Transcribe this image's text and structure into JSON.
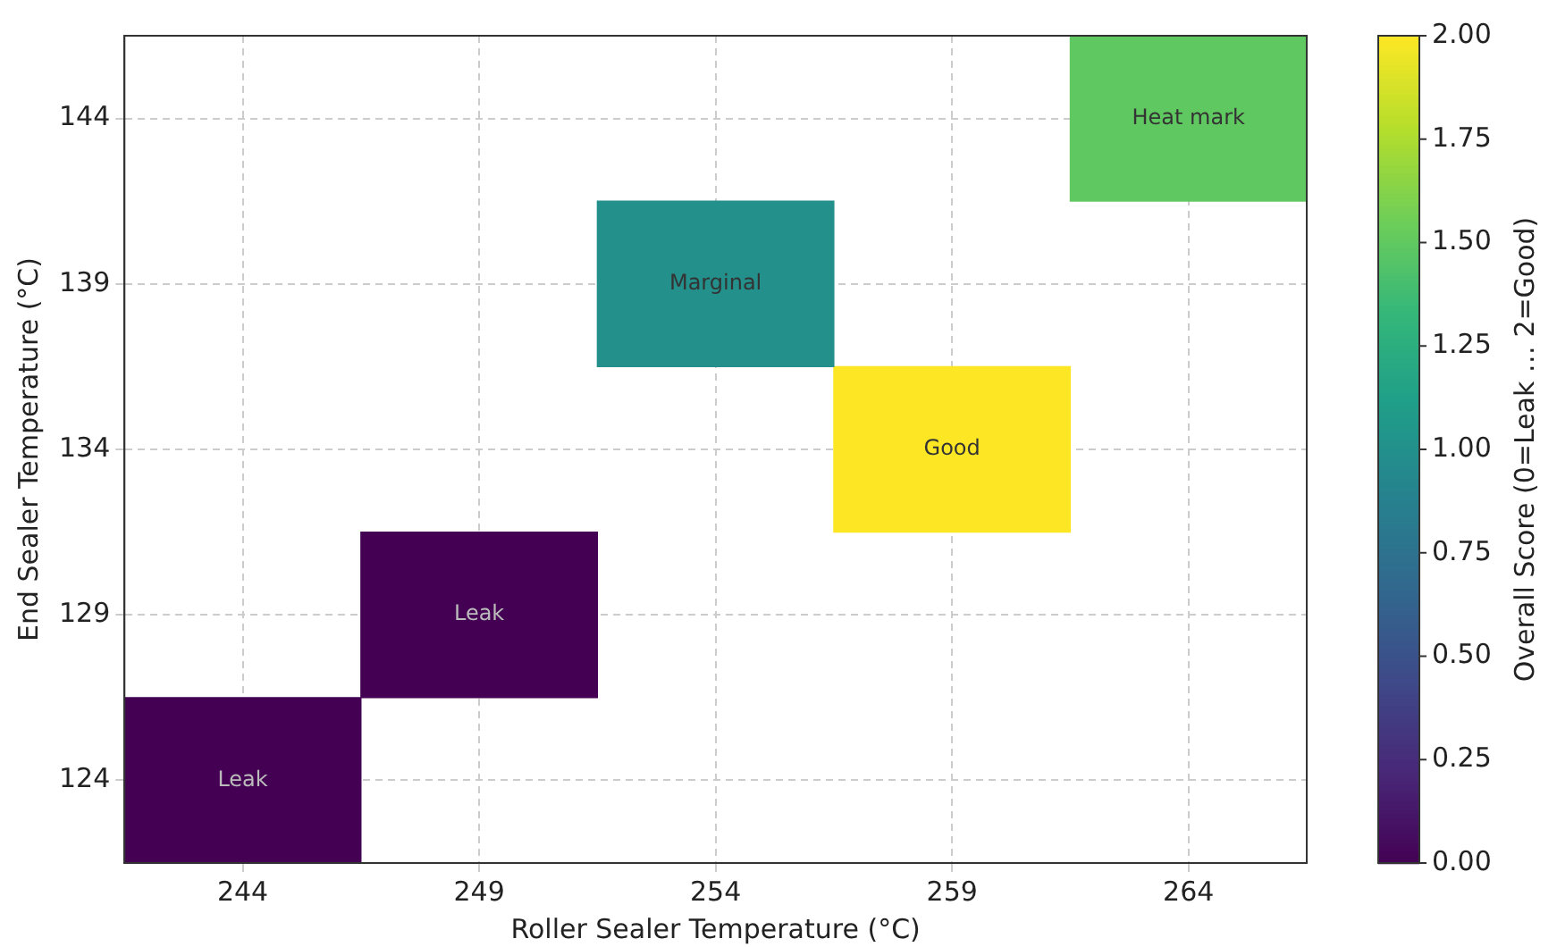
{
  "chart_data": {
    "type": "heatmap",
    "xlabel": "Roller Sealer Temperature (°C)",
    "ylabel": "End Sealer Temperature (°C)",
    "clabel": "Overall Score (0=Leak … 2=Good)",
    "categories": [
      "244",
      "249",
      "254",
      "259",
      "264"
    ],
    "y_categories": [
      "144",
      "139",
      "134",
      "129",
      "124"
    ],
    "cells": [
      [
        null,
        null,
        null,
        null,
        1.5
      ],
      [
        null,
        null,
        1,
        null,
        null
      ],
      [
        null,
        null,
        null,
        2,
        null
      ],
      [
        null,
        0,
        null,
        null,
        null
      ],
      [
        0,
        null,
        null,
        null,
        null
      ]
    ],
    "cell_labels": [
      [
        null,
        null,
        null,
        null,
        "Heat mark"
      ],
      [
        null,
        null,
        "Marginal",
        null,
        null
      ],
      [
        null,
        null,
        null,
        "Good",
        null
      ],
      [
        null,
        "Leak",
        null,
        null,
        null
      ],
      [
        "Leak",
        null,
        null,
        null,
        null
      ]
    ],
    "clim": [
      0,
      2
    ],
    "cticks": [
      {
        "value": 0,
        "label": "0.00"
      },
      0.25,
      {
        "value": 0.5,
        "label": "0.50"
      },
      0.75,
      {
        "value": 1,
        "label": "1.00"
      },
      1.25,
      {
        "value": 1.5,
        "label": "1.50"
      },
      1.75,
      {
        "value": 2,
        "label": "2.00"
      }
    ],
    "grid": true
  }
}
